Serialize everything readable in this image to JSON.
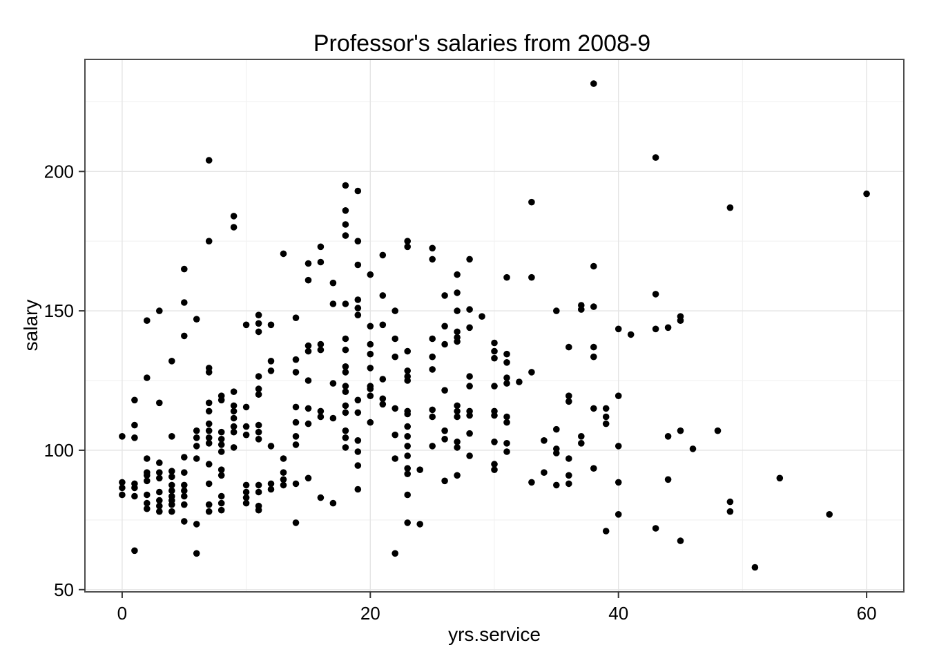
{
  "title": "Professor's salaries from 2008-9",
  "x_axis": {
    "label": "yrs.service",
    "tick_labels": [
      "0",
      "20",
      "40",
      "60"
    ]
  },
  "y_axis": {
    "label": "salary",
    "tick_labels": [
      "50",
      "100",
      "150",
      "200"
    ]
  },
  "colors": {
    "point": "#000000",
    "grid_major": "#E4E4E4",
    "grid_minor": "#F2F2F2",
    "panel_border": "#4D4D4D",
    "tick": "#333333",
    "text": "#000000",
    "panel_background": "#FFFFFF"
  },
  "chart_data": {
    "type": "scatter",
    "title": "Professor's salaries from 2008-9",
    "xlabel": "yrs.service",
    "ylabel": "salary",
    "xlim": [
      -3,
      63
    ],
    "ylim": [
      49.2,
      240.2
    ],
    "x_ticks": [
      0,
      20,
      40,
      60
    ],
    "x_minor": [
      10,
      30,
      50
    ],
    "y_ticks": [
      50,
      100,
      150,
      200
    ],
    "y_minor": [
      75,
      125,
      175,
      225
    ],
    "grid": true,
    "legend": "none",
    "marker_radius": 4.8,
    "points": [
      [
        38,
        231.5
      ],
      [
        7,
        204
      ],
      [
        43,
        205
      ],
      [
        18,
        195
      ],
      [
        19,
        193
      ],
      [
        60,
        192
      ],
      [
        33,
        189
      ],
      [
        49,
        187
      ],
      [
        18,
        186
      ],
      [
        9,
        184
      ],
      [
        18,
        181
      ],
      [
        9,
        180
      ],
      [
        18,
        177
      ],
      [
        7,
        175
      ],
      [
        19,
        175
      ],
      [
        23,
        175
      ],
      [
        23,
        173
      ],
      [
        16,
        173
      ],
      [
        25,
        172.5
      ],
      [
        13,
        170.5
      ],
      [
        21,
        170
      ],
      [
        25,
        168.5
      ],
      [
        28,
        168.5
      ],
      [
        16,
        167.5
      ],
      [
        15,
        167
      ],
      [
        19,
        166.5
      ],
      [
        38,
        166
      ],
      [
        5,
        165
      ],
      [
        20,
        163
      ],
      [
        27,
        163
      ],
      [
        31,
        162
      ],
      [
        33,
        162
      ],
      [
        15,
        161
      ],
      [
        17,
        160
      ],
      [
        43,
        156
      ],
      [
        26,
        155.5
      ],
      [
        21,
        155.5
      ],
      [
        27,
        156.5
      ],
      [
        19,
        154
      ],
      [
        5,
        153
      ],
      [
        17,
        152.5
      ],
      [
        18,
        152.5
      ],
      [
        37,
        152
      ],
      [
        38,
        151.5
      ],
      [
        19,
        151
      ],
      [
        37,
        150.5
      ],
      [
        28,
        150.5
      ],
      [
        3,
        150
      ],
      [
        22,
        150
      ],
      [
        27,
        150
      ],
      [
        35,
        150
      ],
      [
        29,
        148
      ],
      [
        19,
        148.5
      ],
      [
        45,
        148
      ],
      [
        11,
        148.5
      ],
      [
        14,
        147.5
      ],
      [
        6,
        147
      ],
      [
        2,
        146.5
      ],
      [
        45,
        146.5
      ],
      [
        11,
        145.5
      ],
      [
        10,
        145
      ],
      [
        12,
        145
      ],
      [
        21,
        145
      ],
      [
        20,
        144.5
      ],
      [
        26,
        144.5
      ],
      [
        28,
        144
      ],
      [
        44,
        144
      ],
      [
        43,
        143.5
      ],
      [
        40,
        143.5
      ],
      [
        27,
        142.5
      ],
      [
        11,
        142.5
      ],
      [
        41,
        141.5
      ],
      [
        5,
        141
      ],
      [
        27,
        140.5
      ],
      [
        18,
        140
      ],
      [
        22,
        140
      ],
      [
        25,
        140
      ],
      [
        27,
        139
      ],
      [
        30,
        138.5
      ],
      [
        16,
        138
      ],
      [
        20,
        138
      ],
      [
        26,
        138
      ],
      [
        15,
        137.5
      ],
      [
        36,
        137
      ],
      [
        38,
        137
      ],
      [
        18,
        136
      ],
      [
        16,
        136
      ],
      [
        15,
        135.5
      ],
      [
        23,
        135.5
      ],
      [
        30,
        135.5
      ],
      [
        20,
        134.5
      ],
      [
        31,
        134.5
      ],
      [
        22,
        133.5
      ],
      [
        25,
        133.5
      ],
      [
        38,
        133.5
      ],
      [
        30,
        133
      ],
      [
        14,
        132.5
      ],
      [
        4,
        132
      ],
      [
        12,
        132
      ],
      [
        31,
        131.5
      ],
      [
        18,
        130
      ],
      [
        7,
        129.5
      ],
      [
        20,
        129.5
      ],
      [
        25,
        129
      ],
      [
        12,
        128.5
      ],
      [
        23,
        128.5
      ],
      [
        14,
        128
      ],
      [
        18,
        128
      ],
      [
        7,
        128
      ],
      [
        33,
        128
      ],
      [
        11,
        126.5
      ],
      [
        23,
        126.5
      ],
      [
        28,
        126.5
      ],
      [
        2,
        126
      ],
      [
        31,
        126
      ],
      [
        21,
        125.5
      ],
      [
        15,
        125
      ],
      [
        23,
        125
      ],
      [
        17,
        124
      ],
      [
        31,
        124
      ],
      [
        32,
        124.5
      ],
      [
        18,
        123
      ],
      [
        20,
        123
      ],
      [
        28,
        123
      ],
      [
        30,
        123
      ],
      [
        11,
        122
      ],
      [
        20,
        122
      ],
      [
        26,
        121.5
      ],
      [
        9,
        121
      ],
      [
        18,
        121
      ],
      [
        11,
        120
      ],
      [
        8,
        119.5
      ],
      [
        20,
        119.5
      ],
      [
        36,
        119.5
      ],
      [
        40,
        119.5
      ],
      [
        1,
        118
      ],
      [
        19,
        118
      ],
      [
        8,
        118
      ],
      [
        21,
        118.5
      ],
      [
        36,
        117.5
      ],
      [
        3,
        117
      ],
      [
        7,
        117
      ],
      [
        21,
        116.5
      ],
      [
        27,
        116
      ],
      [
        9,
        116
      ],
      [
        18,
        116
      ],
      [
        10,
        115.5
      ],
      [
        14,
        115.5
      ],
      [
        15,
        115
      ],
      [
        22,
        115
      ],
      [
        38,
        115
      ],
      [
        39,
        115
      ],
      [
        25,
        114.5
      ],
      [
        9,
        114
      ],
      [
        7,
        114
      ],
      [
        16,
        114
      ],
      [
        23,
        114
      ],
      [
        27,
        114
      ],
      [
        28,
        114
      ],
      [
        30,
        114
      ],
      [
        18,
        113.5
      ],
      [
        19,
        113.5
      ],
      [
        23,
        113
      ],
      [
        16,
        112
      ],
      [
        25,
        112
      ],
      [
        27,
        112
      ],
      [
        31,
        112
      ],
      [
        39,
        112
      ],
      [
        28,
        112.5
      ],
      [
        30,
        112.5
      ],
      [
        9,
        111.5
      ],
      [
        17,
        111.5
      ],
      [
        14,
        110
      ],
      [
        20,
        110
      ],
      [
        31,
        110
      ],
      [
        7,
        109.5
      ],
      [
        15,
        109.5
      ],
      [
        39,
        109.5
      ],
      [
        1,
        109
      ],
      [
        11,
        109
      ],
      [
        9,
        108.5
      ],
      [
        10,
        108.5
      ],
      [
        23,
        108.5
      ],
      [
        35,
        107.5
      ],
      [
        6,
        107
      ],
      [
        7,
        107
      ],
      [
        18,
        107
      ],
      [
        26,
        107
      ],
      [
        45,
        107
      ],
      [
        48,
        107
      ],
      [
        8,
        106.5
      ],
      [
        9,
        106.5
      ],
      [
        11,
        106.5
      ],
      [
        28,
        106
      ],
      [
        22,
        105.5
      ],
      [
        10,
        105.5
      ],
      [
        0,
        105
      ],
      [
        4,
        105
      ],
      [
        14,
        105
      ],
      [
        23,
        105
      ],
      [
        37,
        105
      ],
      [
        44,
        105
      ],
      [
        7,
        104.5
      ],
      [
        1,
        104.5
      ],
      [
        6,
        104.5
      ],
      [
        18,
        104.5
      ],
      [
        8,
        104
      ],
      [
        11,
        104
      ],
      [
        26,
        104
      ],
      [
        34,
        103.5
      ],
      [
        19,
        103.5
      ],
      [
        27,
        103
      ],
      [
        30,
        103
      ],
      [
        7,
        102.5
      ],
      [
        31,
        102.5
      ],
      [
        37,
        102.5
      ],
      [
        8,
        102
      ],
      [
        14,
        102
      ],
      [
        23,
        101.5
      ],
      [
        25,
        101.5
      ],
      [
        40,
        101.5
      ],
      [
        12,
        101.5
      ],
      [
        6,
        101.5
      ],
      [
        9,
        101
      ],
      [
        18,
        101
      ],
      [
        27,
        101
      ],
      [
        35,
        100.5
      ],
      [
        46,
        100.5
      ],
      [
        8,
        99.5
      ],
      [
        19,
        99.5
      ],
      [
        31,
        99.5
      ],
      [
        35,
        99
      ],
      [
        23,
        98
      ],
      [
        28,
        98
      ],
      [
        2,
        97
      ],
      [
        5,
        97.5
      ],
      [
        6,
        97
      ],
      [
        13,
        97
      ],
      [
        22,
        97
      ],
      [
        36,
        97
      ],
      [
        3,
        95.5
      ],
      [
        7,
        95
      ],
      [
        30,
        95
      ],
      [
        19,
        94.5
      ],
      [
        23,
        93.5
      ],
      [
        38,
        93.5
      ],
      [
        8,
        93
      ],
      [
        24,
        93
      ],
      [
        30,
        93
      ],
      [
        4,
        92.5
      ],
      [
        2,
        92
      ],
      [
        3,
        92
      ],
      [
        5,
        92
      ],
      [
        13,
        92
      ],
      [
        34,
        92
      ],
      [
        23,
        91.5
      ],
      [
        2,
        91
      ],
      [
        8,
        91
      ],
      [
        27,
        91
      ],
      [
        36,
        91
      ],
      [
        4,
        90.5
      ],
      [
        3,
        90
      ],
      [
        15,
        90
      ],
      [
        53,
        90
      ],
      [
        13,
        89.5
      ],
      [
        44,
        89.5
      ],
      [
        2,
        89
      ],
      [
        26,
        89
      ],
      [
        33,
        88.5
      ],
      [
        40,
        88.5
      ],
      [
        0,
        88.5
      ],
      [
        1,
        88
      ],
      [
        7,
        88
      ],
      [
        12,
        88
      ],
      [
        14,
        88
      ],
      [
        36,
        88
      ],
      [
        4,
        87.5
      ],
      [
        5,
        87.5
      ],
      [
        10,
        87.5
      ],
      [
        11,
        87.5
      ],
      [
        13,
        87.5
      ],
      [
        35,
        87.5
      ],
      [
        0,
        86.5
      ],
      [
        1,
        86.5
      ],
      [
        19,
        86
      ],
      [
        12,
        86
      ],
      [
        4,
        85.5
      ],
      [
        5,
        85.5
      ],
      [
        3,
        85
      ],
      [
        10,
        85
      ],
      [
        11,
        85
      ],
      [
        0,
        84
      ],
      [
        2,
        84
      ],
      [
        23,
        84
      ],
      [
        1,
        83.5
      ],
      [
        4,
        83.5
      ],
      [
        5,
        83.5
      ],
      [
        8,
        83.5
      ],
      [
        10,
        83
      ],
      [
        16,
        83
      ],
      [
        3,
        82
      ],
      [
        4,
        82
      ],
      [
        2,
        81
      ],
      [
        8,
        81
      ],
      [
        10,
        81
      ],
      [
        17,
        81
      ],
      [
        49,
        81.5
      ],
      [
        11,
        80
      ],
      [
        4,
        80.5
      ],
      [
        5,
        80.5
      ],
      [
        7,
        80.5
      ],
      [
        3,
        80
      ],
      [
        2,
        79
      ],
      [
        8,
        78.5
      ],
      [
        11,
        78.5
      ],
      [
        3,
        78
      ],
      [
        4,
        78
      ],
      [
        7,
        78
      ],
      [
        49,
        78
      ],
      [
        40,
        77
      ],
      [
        57,
        77
      ],
      [
        5,
        74.5
      ],
      [
        14,
        74
      ],
      [
        23,
        74
      ],
      [
        24,
        73.5
      ],
      [
        6,
        73.5
      ],
      [
        43,
        72
      ],
      [
        39,
        71
      ],
      [
        45,
        67.5
      ],
      [
        1,
        64
      ],
      [
        6,
        63
      ],
      [
        22,
        63
      ],
      [
        51,
        58
      ]
    ]
  }
}
